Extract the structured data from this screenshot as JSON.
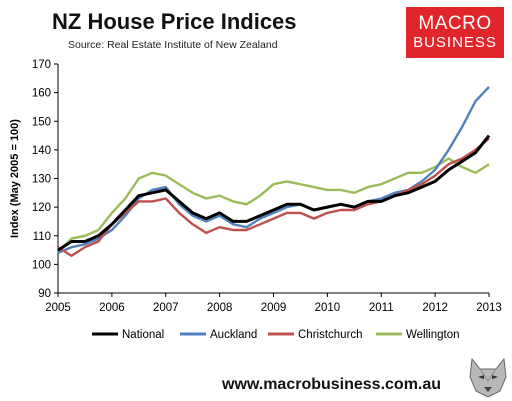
{
  "header": {
    "title": "NZ House Price Indices",
    "subtitle": "Source: Real  Estate Institute of New Zealand"
  },
  "logo": {
    "line1": "MACRO",
    "line2": "BUSINESS",
    "color": "#e0252b"
  },
  "footer": {
    "website": "www.macrobusiness.com.au"
  },
  "chart_data": {
    "type": "line",
    "title": "NZ House Price Indices",
    "ylabel": "Index (May 2005 = 100)",
    "xlabel": "",
    "xlim": [
      2005,
      2013
    ],
    "ylim": [
      90,
      170
    ],
    "xticks": [
      "2005",
      "2006",
      "2007",
      "2008",
      "2009",
      "2010",
      "2011",
      "2012",
      "2013"
    ],
    "yticks": [
      90,
      100,
      110,
      120,
      130,
      140,
      150,
      160,
      170
    ],
    "grid": false,
    "legend": "bottom",
    "series": [
      {
        "name": "National",
        "color": "#000000",
        "x": [
          2005.0,
          2005.25,
          2005.5,
          2005.75,
          2006.0,
          2006.25,
          2006.5,
          2006.75,
          2007.0,
          2007.25,
          2007.5,
          2007.75,
          2008.0,
          2008.25,
          2008.5,
          2008.75,
          2009.0,
          2009.25,
          2009.5,
          2009.75,
          2010.0,
          2010.25,
          2010.5,
          2010.75,
          2011.0,
          2011.25,
          2011.5,
          2011.75,
          2012.0,
          2012.25,
          2012.5,
          2012.75,
          2013.0
        ],
        "values": [
          105,
          108,
          108,
          110,
          114,
          119,
          124,
          125,
          126,
          122,
          118,
          116,
          118,
          115,
          115,
          117,
          119,
          121,
          121,
          119,
          120,
          121,
          120,
          122,
          122,
          124,
          125,
          127,
          129,
          133,
          136,
          139,
          145
        ]
      },
      {
        "name": "Auckland",
        "color": "#4f81bd",
        "x": [
          2005.0,
          2005.25,
          2005.5,
          2005.75,
          2006.0,
          2006.25,
          2006.5,
          2006.75,
          2007.0,
          2007.25,
          2007.5,
          2007.75,
          2008.0,
          2008.25,
          2008.5,
          2008.75,
          2009.0,
          2009.25,
          2009.5,
          2009.75,
          2010.0,
          2010.25,
          2010.5,
          2010.75,
          2011.0,
          2011.25,
          2011.5,
          2011.75,
          2012.0,
          2012.25,
          2012.5,
          2012.75,
          2013.0
        ],
        "values": [
          104,
          106,
          107,
          109,
          112,
          117,
          123,
          126,
          127,
          121,
          117,
          115,
          117,
          114,
          113,
          116,
          118,
          120,
          121,
          119,
          120,
          121,
          120,
          122,
          123,
          125,
          126,
          129,
          133,
          140,
          148,
          157,
          162
        ]
      },
      {
        "name": "Christchurch",
        "color": "#c0504d",
        "x": [
          2005.0,
          2005.25,
          2005.5,
          2005.75,
          2006.0,
          2006.25,
          2006.5,
          2006.75,
          2007.0,
          2007.25,
          2007.5,
          2007.75,
          2008.0,
          2008.25,
          2008.5,
          2008.75,
          2009.0,
          2009.25,
          2009.5,
          2009.75,
          2010.0,
          2010.25,
          2010.5,
          2010.75,
          2011.0,
          2011.25,
          2011.5,
          2011.75,
          2012.0,
          2012.25,
          2012.5,
          2012.75,
          2013.0
        ],
        "values": [
          106,
          103,
          106,
          108,
          114,
          118,
          122,
          122,
          123,
          118,
          114,
          111,
          113,
          112,
          112,
          114,
          116,
          118,
          118,
          116,
          118,
          119,
          119,
          121,
          122,
          124,
          126,
          128,
          131,
          135,
          137,
          140,
          144
        ]
      },
      {
        "name": "Wellington",
        "color": "#9bbb59",
        "x": [
          2005.0,
          2005.25,
          2005.5,
          2005.75,
          2006.0,
          2006.25,
          2006.5,
          2006.75,
          2007.0,
          2007.25,
          2007.5,
          2007.75,
          2008.0,
          2008.25,
          2008.5,
          2008.75,
          2009.0,
          2009.25,
          2009.5,
          2009.75,
          2010.0,
          2010.25,
          2010.5,
          2010.75,
          2011.0,
          2011.25,
          2011.5,
          2011.75,
          2012.0,
          2012.25,
          2012.5,
          2012.75,
          2013.0
        ],
        "values": [
          104,
          109,
          110,
          112,
          118,
          123,
          130,
          132,
          131,
          128,
          125,
          123,
          124,
          122,
          121,
          124,
          128,
          129,
          128,
          127,
          126,
          126,
          125,
          127,
          128,
          130,
          132,
          132,
          134,
          137,
          134,
          132,
          135
        ]
      }
    ]
  }
}
